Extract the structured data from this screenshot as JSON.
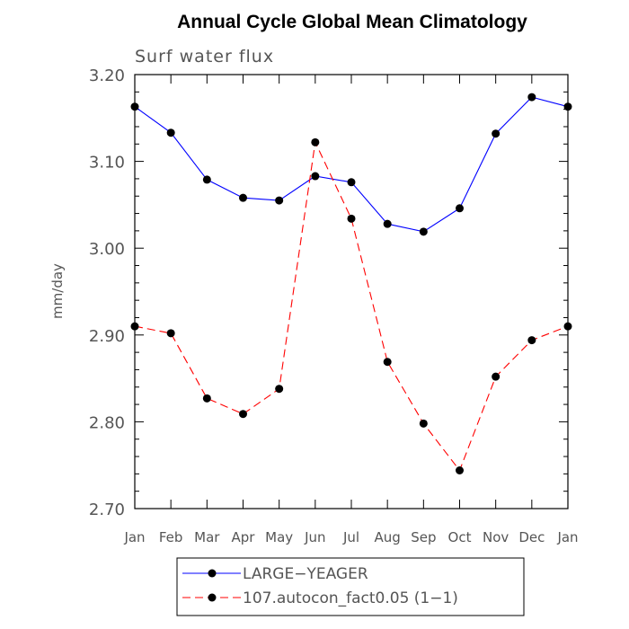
{
  "chart_data": {
    "type": "line",
    "title": "Annual Cycle Global Mean Climatology",
    "subtitle": "Surf water flux",
    "xlabel": "",
    "ylabel": "mm/day",
    "categories": [
      "Jan",
      "Feb",
      "Mar",
      "Apr",
      "May",
      "Jun",
      "Jul",
      "Aug",
      "Sep",
      "Oct",
      "Nov",
      "Dec",
      "Jan"
    ],
    "ylim": [
      2.7,
      3.2
    ],
    "yticks": [
      "2.70",
      "2.80",
      "2.90",
      "3.00",
      "3.10",
      "3.20"
    ],
    "legend_position": "bottom",
    "series": [
      {
        "name": "LARGE−YEAGER",
        "color": "#0000ff",
        "dash": "solid",
        "values": [
          3.163,
          3.133,
          3.079,
          3.058,
          3.055,
          3.083,
          3.076,
          3.028,
          3.019,
          3.046,
          3.132,
          3.174,
          3.163
        ]
      },
      {
        "name": "107.autocon_fact0.05 (1−1)",
        "color": "#ff0000",
        "dash": "dashed",
        "values": [
          2.91,
          2.902,
          2.827,
          2.809,
          2.838,
          3.122,
          3.034,
          2.869,
          2.798,
          2.744,
          2.852,
          2.894,
          2.91
        ]
      }
    ]
  }
}
